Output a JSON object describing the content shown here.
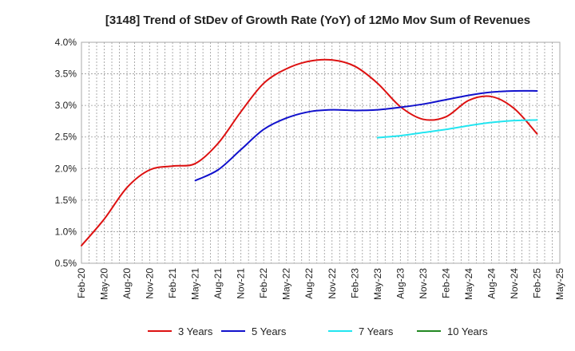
{
  "chart_data": {
    "type": "line",
    "title": "[3148]  Trend of StDev of Growth Rate (YoY) of 12Mo Mov Sum of Revenues",
    "xlabel": "",
    "ylabel": "",
    "ylim": [
      0.5,
      4.0
    ],
    "y_ticks": [
      0.5,
      1.0,
      1.5,
      2.0,
      2.5,
      3.0,
      3.5,
      4.0
    ],
    "y_tick_labels": [
      "0.5%",
      "1.0%",
      "1.5%",
      "2.0%",
      "2.5%",
      "3.0%",
      "3.5%",
      "4.0%"
    ],
    "x_tick_labels": [
      "Feb-20",
      "May-20",
      "Aug-20",
      "Nov-20",
      "Feb-21",
      "May-21",
      "Aug-21",
      "Nov-21",
      "Feb-22",
      "May-22",
      "Aug-22",
      "Nov-22",
      "Feb-23",
      "May-23",
      "Aug-23",
      "Nov-23",
      "Feb-24",
      "May-24",
      "Aug-24",
      "Nov-24",
      "Feb-25",
      "May-25"
    ],
    "x_range_months": [
      0,
      63
    ],
    "grid": true,
    "legend_position": "bottom",
    "series": [
      {
        "name": "3 Years",
        "color": "#dd1111",
        "points": [
          [
            0,
            0.78
          ],
          [
            3,
            1.2
          ],
          [
            6,
            1.7
          ],
          [
            9,
            1.98
          ],
          [
            12,
            2.04
          ],
          [
            15,
            2.08
          ],
          [
            18,
            2.4
          ],
          [
            21,
            2.9
          ],
          [
            24,
            3.35
          ],
          [
            27,
            3.58
          ],
          [
            30,
            3.7
          ],
          [
            33,
            3.72
          ],
          [
            36,
            3.62
          ],
          [
            39,
            3.35
          ],
          [
            42,
            2.98
          ],
          [
            45,
            2.78
          ],
          [
            48,
            2.82
          ],
          [
            51,
            3.08
          ],
          [
            54,
            3.14
          ],
          [
            57,
            2.95
          ],
          [
            60,
            2.55
          ]
        ]
      },
      {
        "name": "5 Years",
        "color": "#1111cc",
        "points": [
          [
            15,
            1.81
          ],
          [
            18,
            1.98
          ],
          [
            21,
            2.3
          ],
          [
            24,
            2.62
          ],
          [
            27,
            2.8
          ],
          [
            30,
            2.9
          ],
          [
            33,
            2.93
          ],
          [
            36,
            2.92
          ],
          [
            39,
            2.93
          ],
          [
            42,
            2.97
          ],
          [
            45,
            3.02
          ],
          [
            48,
            3.09
          ],
          [
            51,
            3.16
          ],
          [
            54,
            3.21
          ],
          [
            57,
            3.23
          ],
          [
            60,
            3.23
          ]
        ]
      },
      {
        "name": "7 Years",
        "color": "#22e5f0",
        "points": [
          [
            39,
            2.49
          ],
          [
            42,
            2.52
          ],
          [
            45,
            2.57
          ],
          [
            48,
            2.62
          ],
          [
            51,
            2.68
          ],
          [
            54,
            2.73
          ],
          [
            57,
            2.76
          ],
          [
            60,
            2.77
          ]
        ]
      },
      {
        "name": "10 Years",
        "color": "#228822",
        "points": []
      }
    ]
  }
}
